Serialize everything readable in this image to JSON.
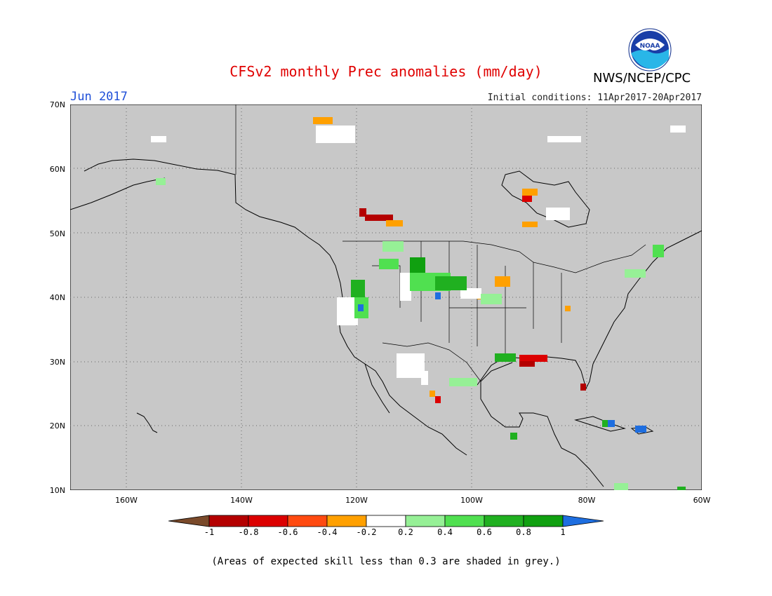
{
  "header": {
    "title": "CFSv2 monthly Prec anomalies (mm/day)",
    "month": "Jun 2017",
    "initial_conditions": "Initial conditions: 11Apr2017-20Apr2017",
    "agency": "NWS/NCEP/CPC",
    "logo_text": "NOAA"
  },
  "map": {
    "region": "North America",
    "lat_labels": [
      "70N",
      "60N",
      "50N",
      "40N",
      "30N",
      "20N",
      "10N"
    ],
    "lon_labels": [
      "160W",
      "140W",
      "120W",
      "100W",
      "80W",
      "60W"
    ],
    "background_color": "#c8c8c8",
    "grid": "dotted"
  },
  "legend": {
    "labels": [
      "-1",
      "-0.8",
      "-0.6",
      "-0.4",
      "-0.2",
      "0.2",
      "0.4",
      "0.6",
      "0.8",
      "1"
    ],
    "colors": [
      "#7a4a2a",
      "#b40000",
      "#dc0000",
      "#ff4a10",
      "#ffa000",
      "#ffffff",
      "#96f096",
      "#50e050",
      "#20b020",
      "#10a010",
      "#1e6ee0"
    ]
  },
  "footnote": "(Areas of expected skill less than 0.3 are shaded in grey.)"
}
